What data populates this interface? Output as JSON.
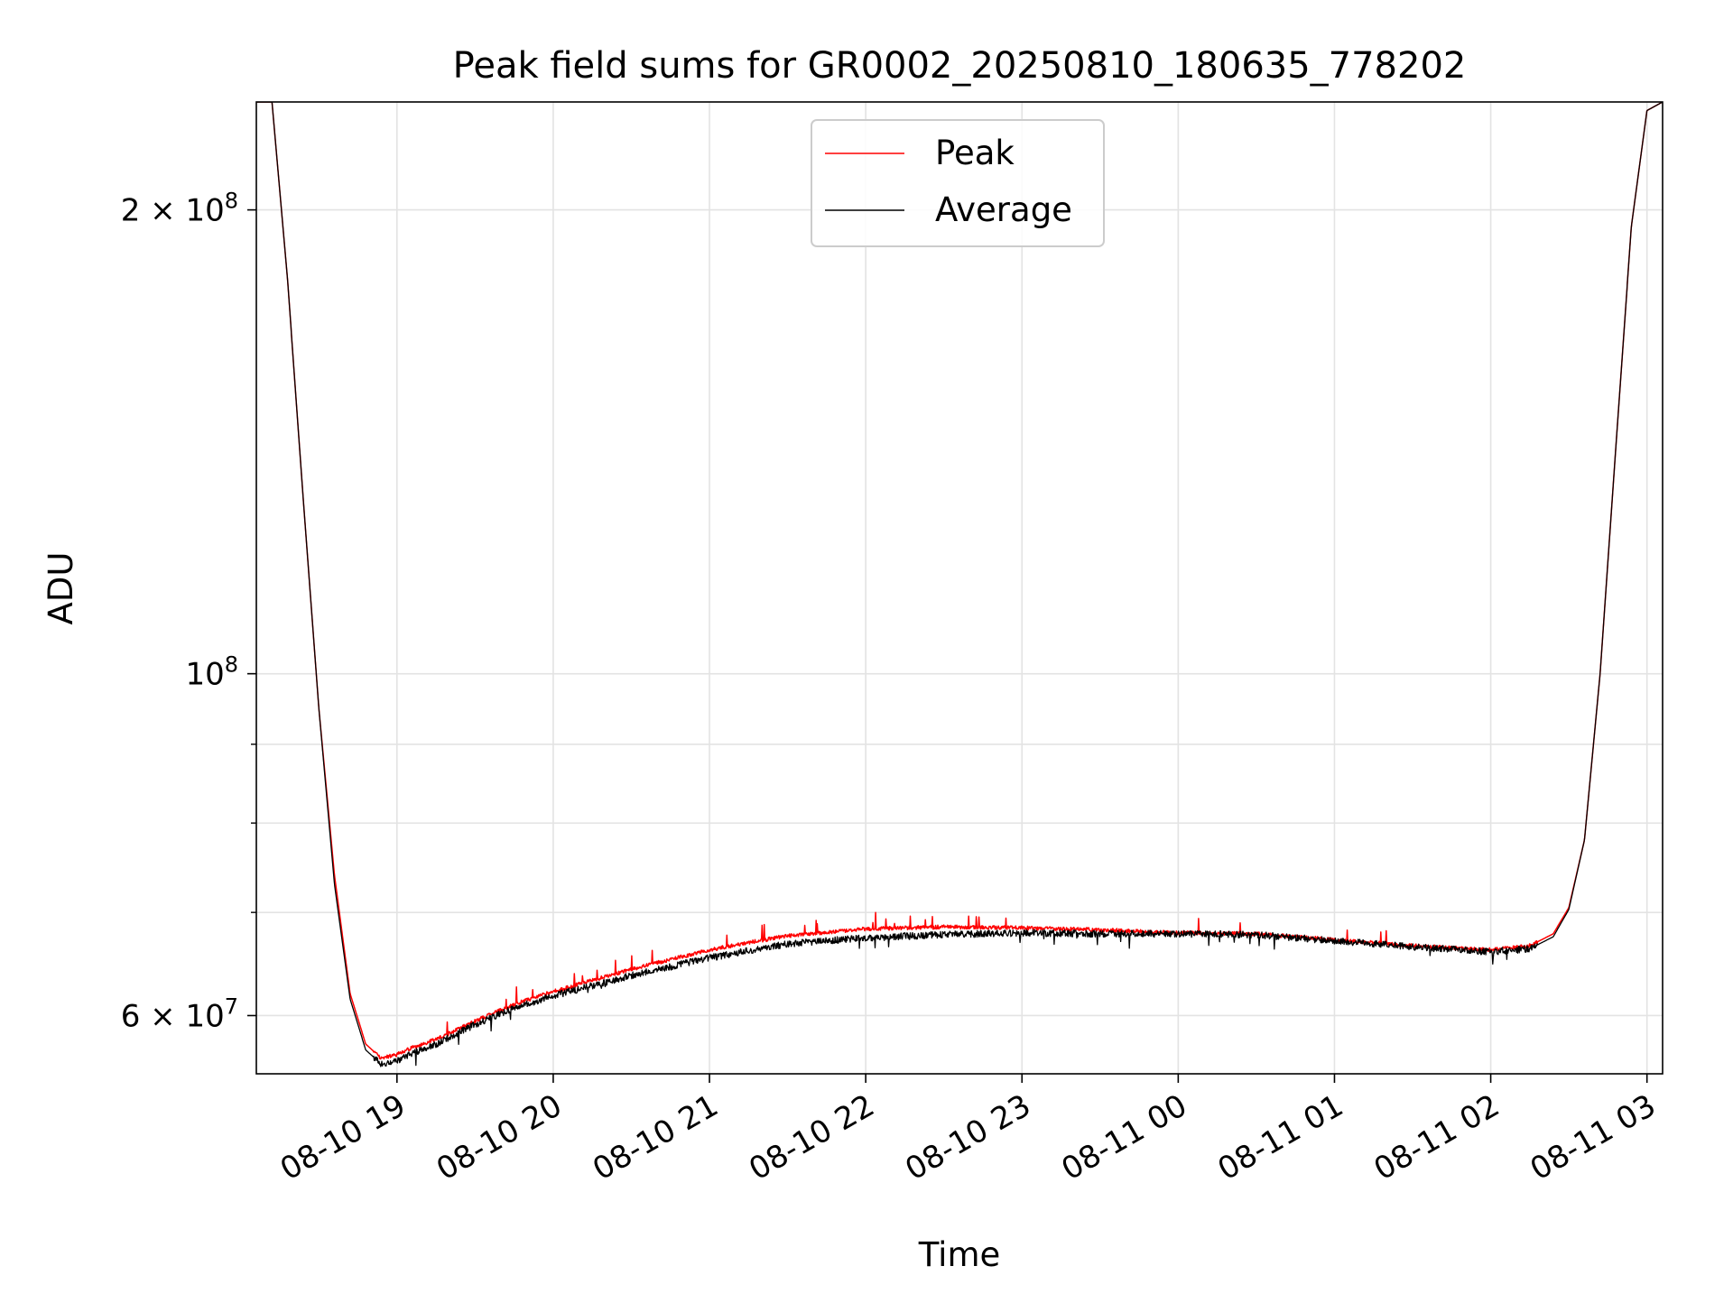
{
  "chart_data": {
    "type": "line",
    "title": "Peak field sums for GR0002_20250810_180635_778202",
    "xlabel": "Time",
    "ylabel": "ADU",
    "y_scale": "log",
    "x_range": [
      "2025-08-10 18:06",
      "2025-08-11 03:06"
    ],
    "ylim": [
      55000000,
      235000000
    ],
    "x_ticks": [
      "08-10 19",
      "08-10 20",
      "08-10 21",
      "08-10 22",
      "08-10 23",
      "08-11 00",
      "08-11 01",
      "08-11 02",
      "08-11 03"
    ],
    "y_ticks_major": [
      {
        "value": 60000000,
        "mantissa": "6",
        "exponent": "7"
      },
      {
        "value": 100000000,
        "mantissa": "",
        "exponent": "8"
      },
      {
        "value": 200000000,
        "mantissa": "2",
        "exponent": "8"
      }
    ],
    "y_ticks_minor": [
      70000000,
      80000000,
      90000000
    ],
    "grid": true,
    "legend_position": "upper center",
    "series": [
      {
        "name": "Peak",
        "color": "#ff0000",
        "x": [
          "2025-08-10 18:06",
          "2025-08-10 18:12",
          "2025-08-10 18:18",
          "2025-08-10 18:24",
          "2025-08-10 18:30",
          "2025-08-10 18:36",
          "2025-08-10 18:42",
          "2025-08-10 18:48",
          "2025-08-10 18:54",
          "2025-08-10 19:00",
          "2025-08-10 19:06",
          "2025-08-10 19:15",
          "2025-08-10 19:30",
          "2025-08-10 19:45",
          "2025-08-10 20:00",
          "2025-08-10 20:30",
          "2025-08-10 21:00",
          "2025-08-10 21:30",
          "2025-08-10 22:00",
          "2025-08-10 22:30",
          "2025-08-10 23:00",
          "2025-08-10 23:30",
          "2025-08-11 00:00",
          "2025-08-11 00:30",
          "2025-08-11 01:00",
          "2025-08-11 01:30",
          "2025-08-11 02:00",
          "2025-08-11 02:15",
          "2025-08-11 02:24",
          "2025-08-11 02:30",
          "2025-08-11 02:36",
          "2025-08-11 02:42",
          "2025-08-11 02:48",
          "2025-08-11 02:54",
          "2025-08-11 03:00",
          "2025-08-11 03:06"
        ],
        "values": [
          235000000,
          235000000,
          180000000,
          130000000,
          95000000,
          74000000,
          62000000,
          57500000,
          56300000,
          56600000,
          57200000,
          57900000,
          59500000,
          61000000,
          62200000,
          64300000,
          66200000,
          67600000,
          68300000,
          68500000,
          68400000,
          68200000,
          67900000,
          67800000,
          67200000,
          66600000,
          66200000,
          66600000,
          67800000,
          70500000,
          78000000,
          100000000,
          140000000,
          195000000,
          232000000,
          235000000
        ]
      },
      {
        "name": "Average",
        "color": "#000000",
        "x": [
          "2025-08-10 18:06",
          "2025-08-10 18:12",
          "2025-08-10 18:18",
          "2025-08-10 18:24",
          "2025-08-10 18:30",
          "2025-08-10 18:36",
          "2025-08-10 18:42",
          "2025-08-10 18:48",
          "2025-08-10 18:54",
          "2025-08-10 19:00",
          "2025-08-10 19:06",
          "2025-08-10 19:15",
          "2025-08-10 19:30",
          "2025-08-10 19:45",
          "2025-08-10 20:00",
          "2025-08-10 20:30",
          "2025-08-10 21:00",
          "2025-08-10 21:30",
          "2025-08-10 22:00",
          "2025-08-10 22:30",
          "2025-08-10 23:00",
          "2025-08-10 23:30",
          "2025-08-11 00:00",
          "2025-08-11 00:30",
          "2025-08-11 01:00",
          "2025-08-11 01:30",
          "2025-08-11 02:00",
          "2025-08-11 02:15",
          "2025-08-11 02:24",
          "2025-08-11 02:30",
          "2025-08-11 02:36",
          "2025-08-11 02:42",
          "2025-08-11 02:48",
          "2025-08-11 02:54",
          "2025-08-11 03:00",
          "2025-08-11 03:06"
        ],
        "values": [
          235000000,
          235000000,
          180000000,
          130000000,
          95000000,
          73000000,
          61500000,
          57000000,
          55800000,
          56100000,
          56700000,
          57500000,
          59200000,
          60700000,
          61800000,
          63700000,
          65400000,
          66800000,
          67400000,
          67700000,
          67900000,
          67800000,
          67800000,
          67700000,
          67100000,
          66500000,
          66000000,
          66300000,
          67500000,
          70300000,
          78000000,
          100000000,
          140000000,
          195000000,
          232000000,
          235000000
        ]
      }
    ]
  }
}
